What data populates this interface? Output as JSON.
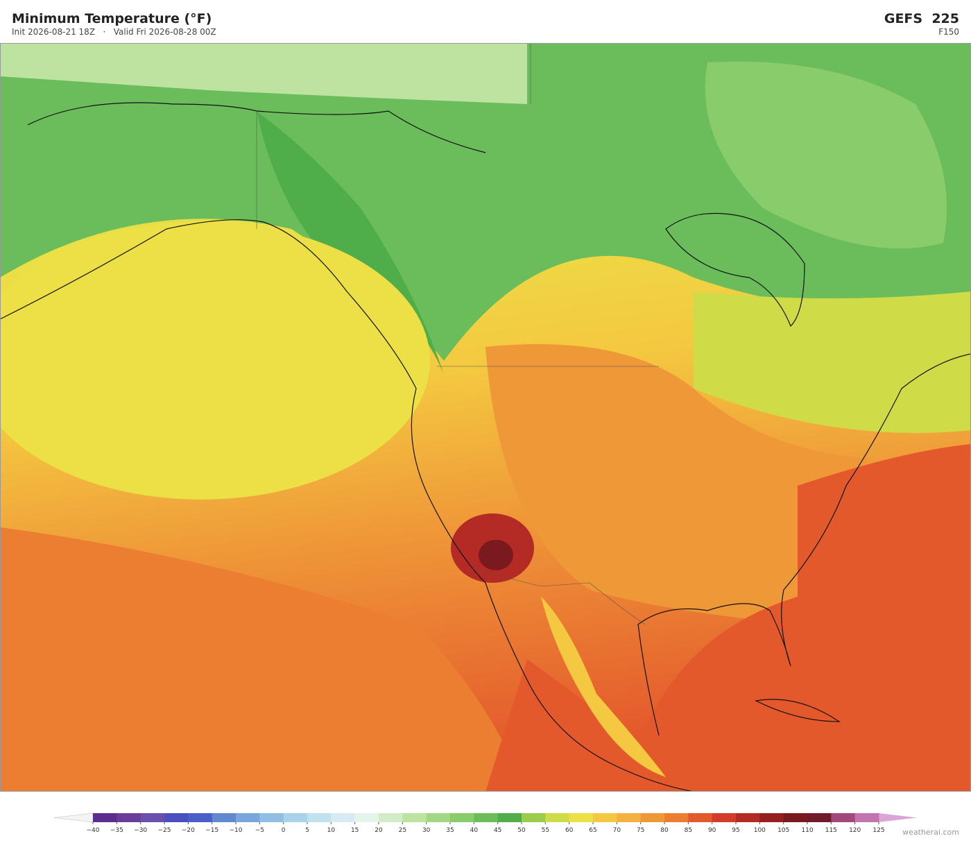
{
  "header": {
    "title": "Minimum Temperature  (°F)",
    "subtitle": "Init 2026-08-21 18Z   ·   Valid Fri 2026-08-28 00Z",
    "model": "GEFS  225",
    "forecast_hour": "F150"
  },
  "colorbar": {
    "ticks": [
      {
        "value": -40,
        "label": "−40"
      },
      {
        "value": -35,
        "label": "−35"
      },
      {
        "value": -30,
        "label": "−30"
      },
      {
        "value": -25,
        "label": "−25"
      },
      {
        "value": -20,
        "label": "−20"
      },
      {
        "value": -15,
        "label": "−15"
      },
      {
        "value": -10,
        "label": "−10"
      },
      {
        "value": -5,
        "label": "−5"
      },
      0,
      5,
      10,
      15,
      20,
      25,
      30,
      35,
      40,
      45,
      50,
      55,
      60,
      65,
      70,
      75,
      80,
      85,
      90,
      95,
      100,
      105,
      110,
      115,
      120,
      125
    ],
    "colors": [
      "#5b2d8e",
      "#6a3d9a",
      "#6b4fae",
      "#4b4fc0",
      "#4a60c8",
      "#6288d0",
      "#79a6dc",
      "#90bfe3",
      "#a8d3ea",
      "#c0e2ef",
      "#d6ecf2",
      "#e6f3e8",
      "#d3ecc8",
      "#bde3a0",
      "#a2d883",
      "#88cc6c",
      "#6abd5a",
      "#4fae4a",
      "#9ccc4e",
      "#d0db48",
      "#ece046",
      "#f4c840",
      "#f4b040",
      "#ef9838",
      "#ec7e32",
      "#e4592c",
      "#d23c28",
      "#b42a25",
      "#96201f",
      "#7a1a1f",
      "#701a2a",
      "#a3487a",
      "#c374b0"
    ],
    "under_color": "#f4f4f4",
    "over_color": "#dca5d8"
  },
  "watermark": "weatherai.com"
}
